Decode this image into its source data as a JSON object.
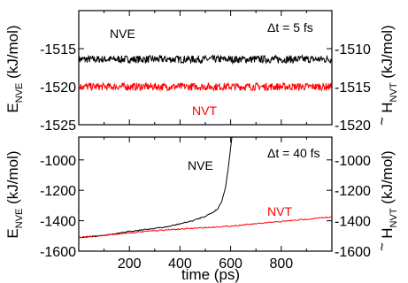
{
  "chart_data": [
    {
      "type": "line",
      "annotation": "Δt = 5 fs",
      "x_range": [
        0,
        1000
      ],
      "left_axis": {
        "label_main": "E",
        "label_sub": "NVE",
        "label_unit": "(kJ/mol)",
        "ylim": [
          -1525,
          -1510
        ],
        "ticks": [
          -1515,
          -1520,
          -1525
        ],
        "tick_labels": [
          "-1515",
          "-1520",
          "-1525"
        ]
      },
      "right_axis": {
        "label_main": "H",
        "label_accent": "~",
        "label_sub": "NVT",
        "label_unit": "(kJ/mol)",
        "ylim": [
          -1520,
          -1505
        ],
        "ticks": [
          -1510,
          -1515,
          -1520
        ],
        "tick_labels": [
          "-1510",
          "-1515",
          "-1520"
        ]
      },
      "series": [
        {
          "name": "NVE",
          "color": "#000000",
          "axis": "left",
          "mean": -1516.4,
          "amplitude": 0.5
        },
        {
          "name": "NVT",
          "color": "#ff0000",
          "axis": "right",
          "mean": -1515.0,
          "amplitude": 0.5
        }
      ]
    },
    {
      "type": "line",
      "annotation": "Δt = 40 fs",
      "x_range": [
        0,
        1000
      ],
      "xlabel": "time (ps)",
      "x_ticks": [
        200,
        400,
        600,
        800
      ],
      "x_tick_labels": [
        "200",
        "400",
        "600",
        "800"
      ],
      "left_axis": {
        "label_main": "E",
        "label_sub": "NVE",
        "label_unit": "(kJ/mol)",
        "ylim": [
          -1600,
          -850
        ],
        "ticks": [
          -1000,
          -1200,
          -1400,
          -1600
        ],
        "tick_labels": [
          "-1000",
          "-1200",
          "-1400",
          "-1600"
        ]
      },
      "right_axis": {
        "label_main": "H",
        "label_accent": "~",
        "label_sub": "NVT",
        "label_unit": "(kJ/mol)",
        "ylim": [
          -1600,
          -850
        ],
        "ticks": [
          -1000,
          -1200,
          -1400,
          -1600
        ],
        "tick_labels": [
          "-1000",
          "-1200",
          "-1400",
          "-1600"
        ]
      },
      "series": [
        {
          "name": "NVE",
          "color": "#000000",
          "axis": "left",
          "x": [
            0,
            50,
            100,
            150,
            200,
            250,
            300,
            350,
            400,
            450,
            500,
            530,
            550,
            565,
            580,
            590,
            600,
            605
          ],
          "y": [
            -1510,
            -1505,
            -1495,
            -1485,
            -1470,
            -1460,
            -1450,
            -1440,
            -1420,
            -1400,
            -1370,
            -1345,
            -1320,
            -1270,
            -1180,
            -1060,
            -920,
            -850
          ]
        },
        {
          "name": "NVT",
          "color": "#ff0000",
          "axis": "right",
          "x": [
            0,
            100,
            200,
            300,
            400,
            500,
            600,
            700,
            800,
            900,
            1000
          ],
          "y": [
            -1510,
            -1495,
            -1480,
            -1465,
            -1455,
            -1445,
            -1435,
            -1420,
            -1405,
            -1390,
            -1375
          ]
        }
      ]
    }
  ]
}
